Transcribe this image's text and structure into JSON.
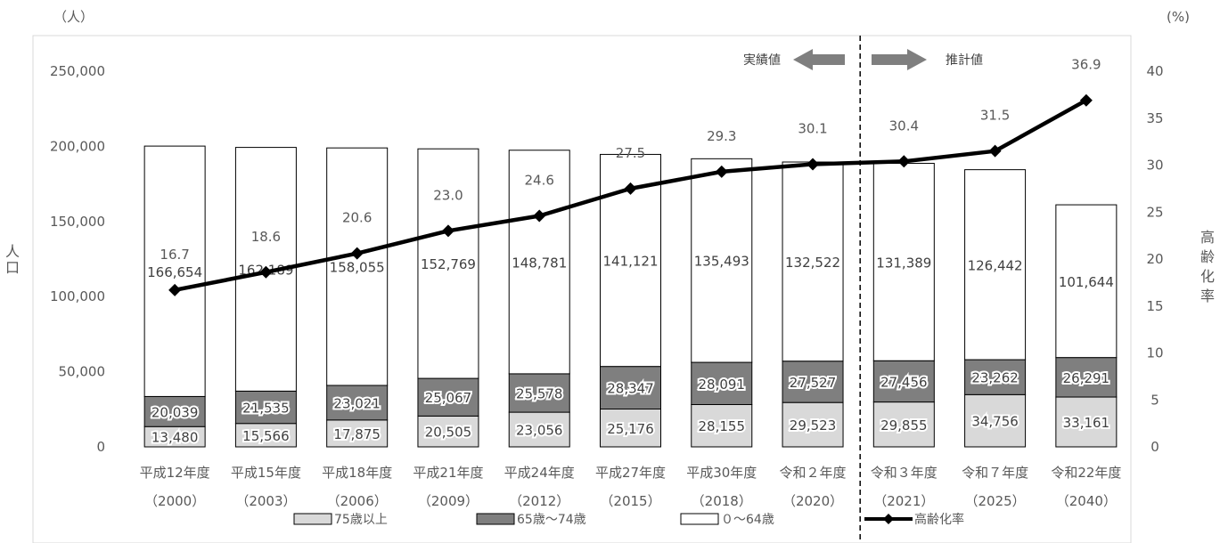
{
  "chart_data": {
    "type": "bar",
    "stacked": true,
    "categories": [
      [
        "平成12年度",
        "（2000）"
      ],
      [
        "平成15年度",
        "（2003）"
      ],
      [
        "平成18年度",
        "（2006）"
      ],
      [
        "平成21年度",
        "（2009）"
      ],
      [
        "平成24年度",
        "（2012）"
      ],
      [
        "平成27年度",
        "（2015）"
      ],
      [
        "平成30年度",
        "（2018）"
      ],
      [
        "令和２年度",
        "（2020）"
      ],
      [
        "令和３年度",
        "（2021）"
      ],
      [
        "令和７年度",
        "（2025）"
      ],
      [
        "令和22年度",
        "（2040）"
      ]
    ],
    "series": [
      {
        "name": "75歳以上",
        "color": "#d9d9d9",
        "values": [
          13480,
          15566,
          17875,
          20505,
          23056,
          25176,
          28155,
          29523,
          29855,
          34756,
          33161
        ],
        "labels": [
          "13,480",
          "15,566",
          "17,875",
          "20,505",
          "23,056",
          "25,176",
          "28,155",
          "29,523",
          "29,855",
          "34,756",
          "33,161"
        ]
      },
      {
        "name": "65歳〜74歳",
        "color": "#7f7f7f",
        "values": [
          20039,
          21535,
          23021,
          25067,
          25578,
          28347,
          28091,
          27527,
          27456,
          23262,
          26291
        ],
        "labels": [
          "20,039",
          "21,535",
          "23,021",
          "25,067",
          "25,578",
          "28,347",
          "28,091",
          "27,527",
          "27,456",
          "23,262",
          "26,291"
        ]
      },
      {
        "name": "０〜64歳",
        "color": "#ffffff",
        "values": [
          166654,
          162189,
          158055,
          152769,
          148781,
          141121,
          135493,
          132522,
          131389,
          126442,
          101644
        ],
        "labels": [
          "166,654",
          "162,189",
          "158,055",
          "152,769",
          "148,781",
          "141,121",
          "135,493",
          "132,522",
          "131,389",
          "126,442",
          "101,644"
        ]
      }
    ],
    "line_series": {
      "name": "高齢化率",
      "axis": "right",
      "color": "#000000",
      "values": [
        16.7,
        18.6,
        20.6,
        23.0,
        24.6,
        27.5,
        29.3,
        30.1,
        30.4,
        31.5,
        36.9
      ],
      "labels": [
        "16.7",
        "18.6",
        "20.6",
        "23.0",
        "24.6",
        "27.5",
        "29.3",
        "30.1",
        "30.4",
        "31.5",
        "36.9"
      ]
    },
    "left_axis": {
      "unit": "（人）",
      "title": "人口",
      "ylim": [
        0,
        250000
      ],
      "ticks": [
        0,
        50000,
        100000,
        150000,
        200000,
        250000
      ],
      "tick_labels": [
        "0",
        "50,000",
        "100,000",
        "150,000",
        "200,000",
        "250,000"
      ]
    },
    "right_axis": {
      "unit": "(%)",
      "title": "高齢化率",
      "ylim": [
        0,
        40
      ],
      "ticks": [
        0,
        5,
        10,
        15,
        20,
        25,
        30,
        35,
        40
      ],
      "tick_labels": [
        "0",
        "5",
        "10",
        "15",
        "20",
        "25",
        "30",
        "35",
        "40"
      ]
    },
    "divider": {
      "after_category_index": 7,
      "left_label": "実績値",
      "right_label": "推計値"
    },
    "legend_position": "bottom",
    "grid": false
  }
}
